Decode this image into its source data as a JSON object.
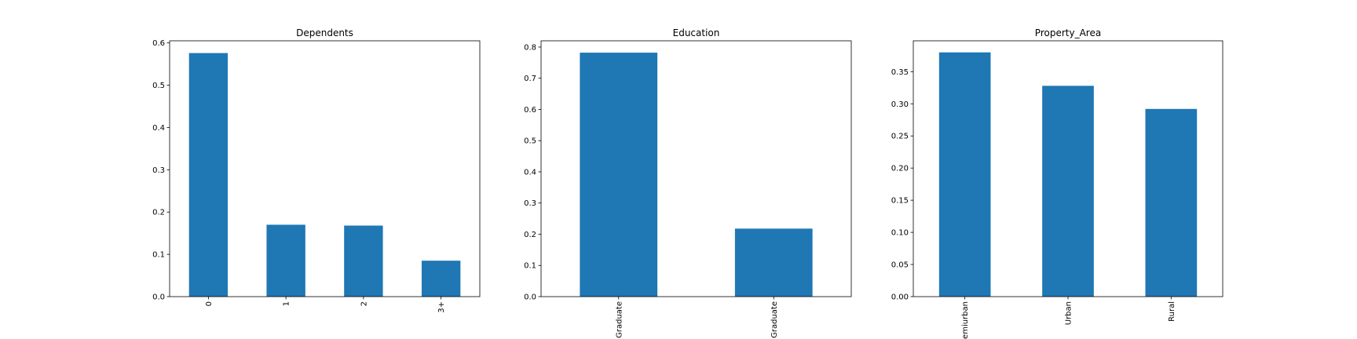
{
  "chart_data": [
    {
      "type": "bar",
      "title": "Dependents",
      "categories": [
        "0",
        "1",
        "2",
        "3+"
      ],
      "values": [
        0.576,
        0.17,
        0.168,
        0.085
      ],
      "xlabel": "",
      "ylabel": "",
      "ylim": [
        0,
        0.605
      ],
      "yticks": [
        "0.0",
        "0.1",
        "0.2",
        "0.3",
        "0.4",
        "0.5",
        "0.6"
      ],
      "grid": false,
      "color": "#1f77b4"
    },
    {
      "type": "bar",
      "title": "Education",
      "categories": [
        "Graduate",
        "Not Graduate"
      ],
      "values": [
        0.782,
        0.218
      ],
      "xlabel": "",
      "ylabel": "",
      "ylim": [
        0,
        0.82
      ],
      "yticks": [
        "0.0",
        "0.1",
        "0.2",
        "0.3",
        "0.4",
        "0.5",
        "0.6",
        "0.7",
        "0.8"
      ],
      "grid": false,
      "color": "#1f77b4"
    },
    {
      "type": "bar",
      "title": "Property_Area",
      "categories": [
        "Semiurban",
        "Urban",
        "Rural"
      ],
      "values": [
        0.38,
        0.328,
        0.292
      ],
      "xlabel": "",
      "ylabel": "",
      "ylim": [
        0,
        0.398
      ],
      "yticks": [
        "0.00",
        "0.05",
        "0.10",
        "0.15",
        "0.20",
        "0.25",
        "0.30",
        "0.35"
      ],
      "grid": false,
      "color": "#1f77b4"
    }
  ]
}
